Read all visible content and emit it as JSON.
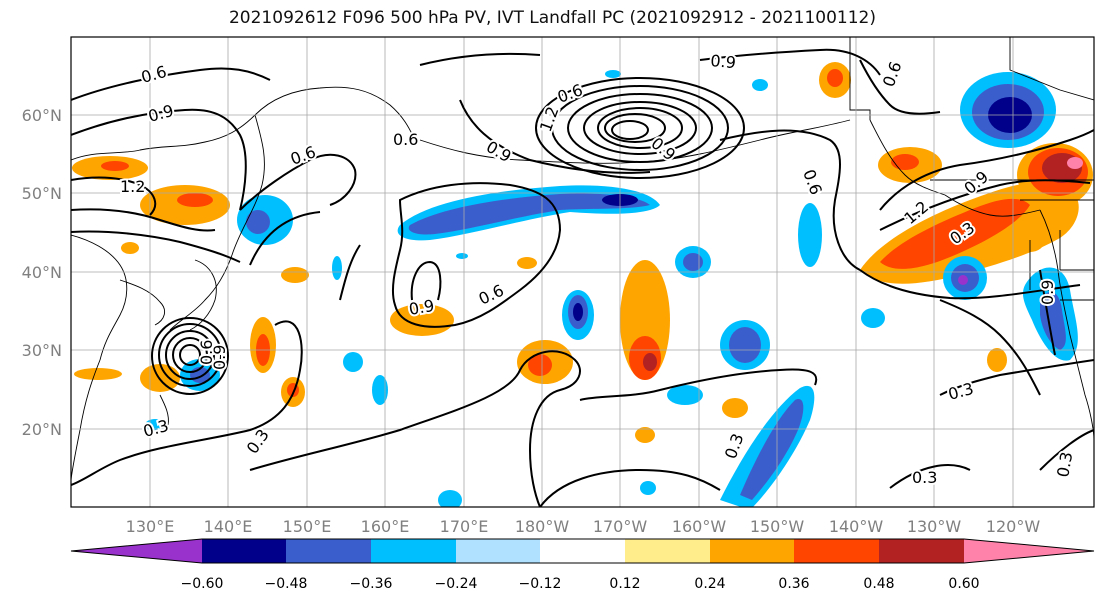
{
  "title": "2021092612 F096 500 hPa PV, IVT Landfall PC (2021092912 - 2021100112)",
  "lat_labels": [
    "20°N",
    "30°N",
    "40°N",
    "50°N",
    "60°N"
  ],
  "lon_labels": [
    "130°E",
    "140°E",
    "150°E",
    "160°E",
    "170°E",
    "180°W",
    "170°W",
    "160°W",
    "150°W",
    "140°W",
    "130°W",
    "120°W"
  ],
  "colorbar": {
    "colors": [
      "#9932cc",
      "#00008b",
      "#3a5fcd",
      "#00bfff",
      "#b0e2ff",
      "#ffffff",
      "#ffec8b",
      "#ffa500",
      "#ff4500",
      "#b22222",
      "#ff82ab"
    ],
    "tick_labels": [
      "−0.60",
      "−0.48",
      "−0.36",
      "−0.24",
      "−0.12",
      "0.12",
      "0.24",
      "0.36",
      "0.48",
      "0.60"
    ]
  },
  "contour_labels": [
    "0.6",
    "0.9",
    "0.6",
    "0.9",
    "0.6",
    "0.6",
    "1.2",
    "0.9",
    "0.6",
    "0.9",
    "0.6",
    "0.3",
    "0.3",
    "0.3",
    "0.3",
    "0.6",
    "0.9",
    "1.2",
    "0.3",
    "0.3",
    "0.3",
    "0.6",
    "0.9",
    "1.2",
    "0.9",
    "0.9"
  ]
}
